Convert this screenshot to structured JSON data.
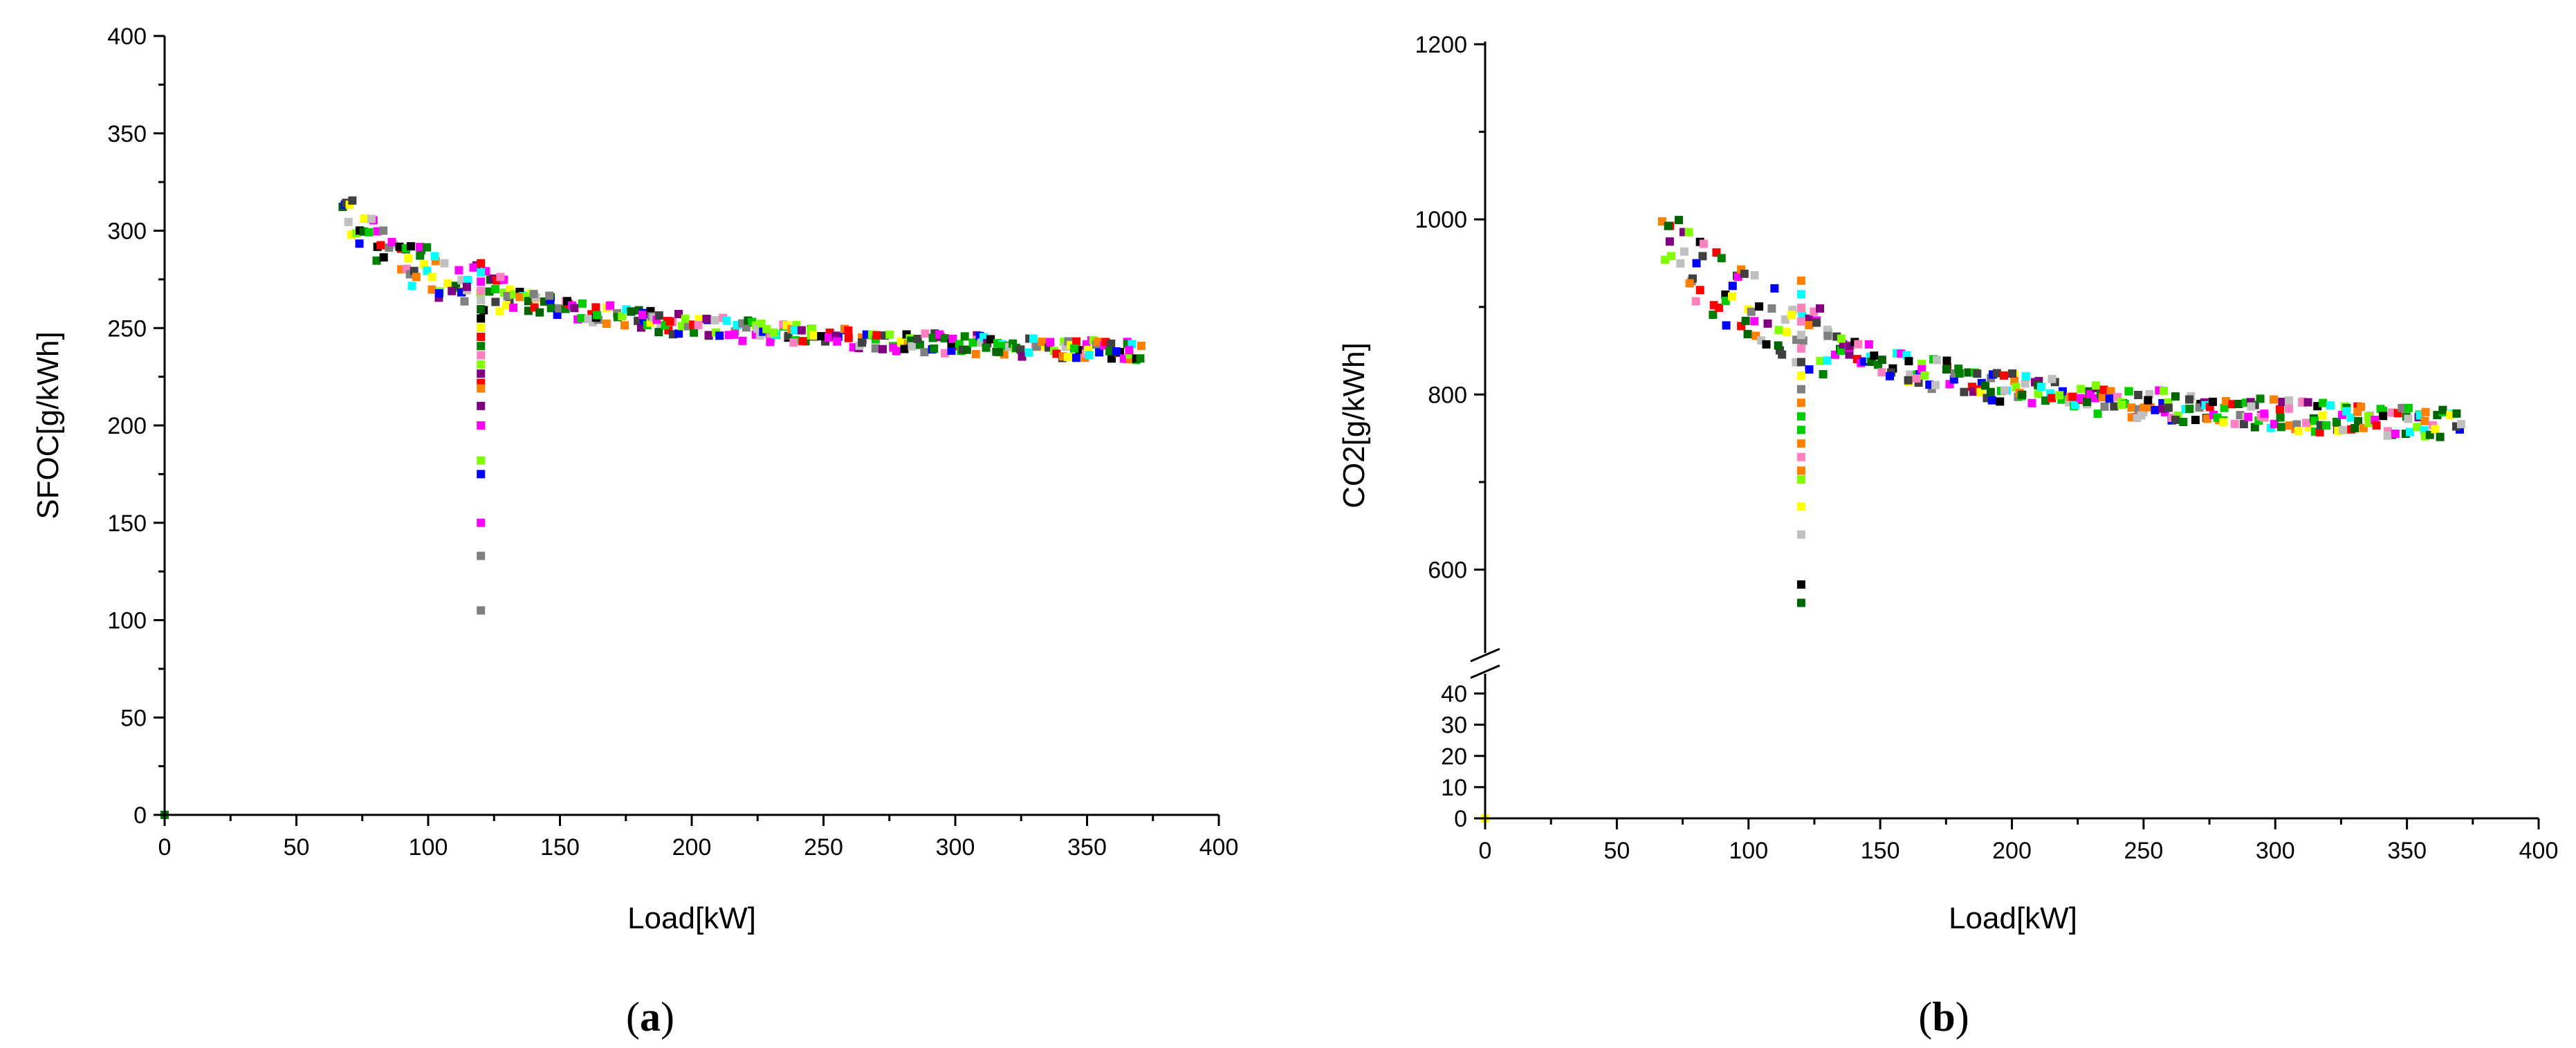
{
  "chart_data": [
    {
      "panel": "(a)",
      "panel_letter": "a",
      "type": "scatter",
      "xlabel": "Load[kW]",
      "ylabel": "SFOC[g/kWh]",
      "xlim": [
        0,
        400
      ],
      "ylim": [
        0,
        400
      ],
      "xticks": [
        0,
        50,
        100,
        150,
        200,
        250,
        300,
        350,
        400
      ],
      "yticks": [
        0,
        50,
        100,
        150,
        200,
        250,
        300,
        350,
        400
      ],
      "marker": "square",
      "curve": {
        "a": 7100,
        "p": 1.05,
        "c": 224
      },
      "x_range": [
        68,
        372
      ],
      "vertical_cluster": {
        "x": 120,
        "y_range": [
          105,
          288
        ]
      },
      "outliers": [
        {
          "x": 120,
          "y": 219
        },
        {
          "x": 120,
          "y": 210
        },
        {
          "x": 120,
          "y": 200
        },
        {
          "x": 120,
          "y": 182
        },
        {
          "x": 120,
          "y": 175
        },
        {
          "x": 120,
          "y": 150
        },
        {
          "x": 120,
          "y": 133
        },
        {
          "x": 120,
          "y": 105
        }
      ],
      "origin_point": {
        "x": 0,
        "y": 0
      },
      "grid": false,
      "legend": "none"
    },
    {
      "panel": "(b)",
      "panel_letter": "b",
      "type": "scatter",
      "xlabel": "Load[kW]",
      "ylabel": "CO2[g/kWh]",
      "xlim": [
        0,
        400
      ],
      "ylim_upper": [
        500,
        1200
      ],
      "ylim_lower": [
        0,
        45
      ],
      "axis_break": true,
      "xticks": [
        0,
        50,
        100,
        150,
        200,
        250,
        300,
        350,
        400
      ],
      "yticks_upper": [
        600,
        800,
        1000,
        1200
      ],
      "yticks_lower": [
        0,
        10,
        20,
        30,
        40
      ],
      "marker": "square",
      "curve": {
        "a": 22800,
        "p": 1.05,
        "c": 720
      },
      "x_range": [
        68,
        372
      ],
      "vertical_cluster": {
        "x": 120,
        "y_range": [
          560,
          930
        ]
      },
      "outliers": [
        {
          "x": 120,
          "y": 703
        },
        {
          "x": 120,
          "y": 672
        },
        {
          "x": 120,
          "y": 640
        },
        {
          "x": 120,
          "y": 583
        },
        {
          "x": 120,
          "y": 562
        }
      ],
      "origin_point": {
        "x": 0,
        "y": 0
      },
      "grid": false,
      "legend": "none"
    }
  ],
  "marker_colors": [
    "#ff0000",
    "#00cc00",
    "#0000ff",
    "#ffff00",
    "#ff00ff",
    "#00ffff",
    "#000000",
    "#808080",
    "#ff8000",
    "#800080",
    "#008000",
    "#c0c0c0",
    "#ff80c0",
    "#404040",
    "#80ff00",
    "#006400"
  ]
}
